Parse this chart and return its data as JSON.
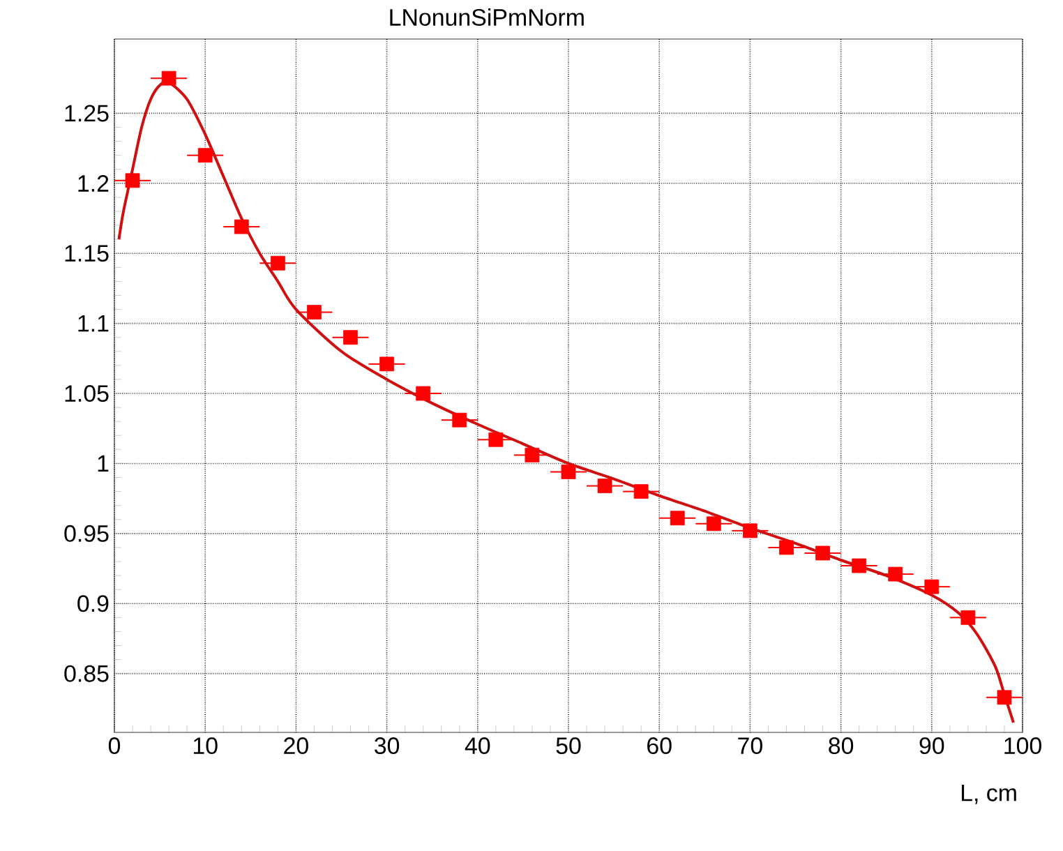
{
  "chart_data": {
    "type": "scatter",
    "title": "LNonunSiPmNorm",
    "xlabel": "L, cm",
    "xlim": [
      0,
      100
    ],
    "xticks": [
      0,
      10,
      20,
      30,
      40,
      50,
      60,
      70,
      80,
      90,
      100
    ],
    "ylim": [
      0.808,
      1.303
    ],
    "yticks": [
      0.85,
      0.9,
      0.95,
      1,
      1.05,
      1.1,
      1.15,
      1.2,
      1.25
    ],
    "grid": true,
    "marker": "square",
    "series": [
      {
        "color": "#ff0000",
        "x": [
          2,
          6,
          10,
          14,
          18,
          22,
          26,
          30,
          34,
          38,
          42,
          46,
          50,
          54,
          58,
          62,
          66,
          70,
          74,
          78,
          82,
          86,
          90,
          94,
          98
        ],
        "values": [
          1.202,
          1.275,
          1.22,
          1.169,
          1.143,
          1.108,
          1.09,
          1.071,
          1.05,
          1.031,
          1.017,
          1.006,
          0.994,
          0.984,
          0.98,
          0.961,
          0.957,
          0.952,
          0.94,
          0.936,
          0.927,
          0.921,
          0.912,
          0.89,
          0.833
        ],
        "xerrors": [
          2,
          2,
          2,
          2,
          2,
          2,
          2,
          2,
          2,
          2,
          2,
          2,
          2,
          2,
          2,
          2,
          2,
          2,
          2,
          2,
          2,
          2,
          2,
          2,
          2
        ]
      },
      {
        "type": "line",
        "color": "#d01010",
        "marker": "none",
        "line_style": "solid",
        "x": [
          0.5,
          1,
          2,
          3,
          4,
          5,
          6,
          8,
          10,
          12,
          14,
          16,
          18,
          20,
          25,
          30,
          35,
          40,
          45,
          50,
          55,
          60,
          65,
          70,
          75,
          80,
          85,
          90,
          93,
          95,
          97,
          98,
          99
        ],
        "values": [
          1.16,
          1.18,
          1.21,
          1.24,
          1.26,
          1.27,
          1.272,
          1.26,
          1.235,
          1.205,
          1.175,
          1.15,
          1.13,
          1.11,
          1.08,
          1.06,
          1.043,
          1.028,
          1.014,
          1.0,
          0.989,
          0.977,
          0.966,
          0.954,
          0.943,
          0.931,
          0.92,
          0.906,
          0.893,
          0.878,
          0.855,
          0.835,
          0.815
        ]
      }
    ]
  }
}
